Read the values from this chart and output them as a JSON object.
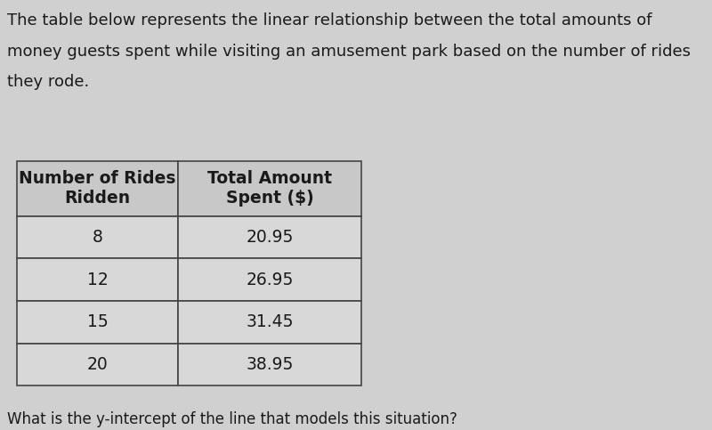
{
  "description_lines": [
    "The table below represents the linear relationship between the total amounts of",
    "money guests spent while visiting an amusement park based on the number of rides",
    "they rode."
  ],
  "col1_header": "Number of Rides\nRidden",
  "col2_header": "Total Amount\nSpent ($)",
  "rows": [
    [
      "8",
      "20.95"
    ],
    [
      "12",
      "26.95"
    ],
    [
      "15",
      "31.45"
    ],
    [
      "20",
      "38.95"
    ]
  ],
  "footer": "What is the y-intercept of the line that models this situation?",
  "bg_color": "#d0d0d0",
  "table_bg": "#d8d8d8",
  "header_bg": "#c8c8c8",
  "text_color": "#1a1a1a",
  "border_color": "#444444",
  "font_size_desc": 13,
  "font_size_table": 13.5,
  "font_size_footer": 12
}
